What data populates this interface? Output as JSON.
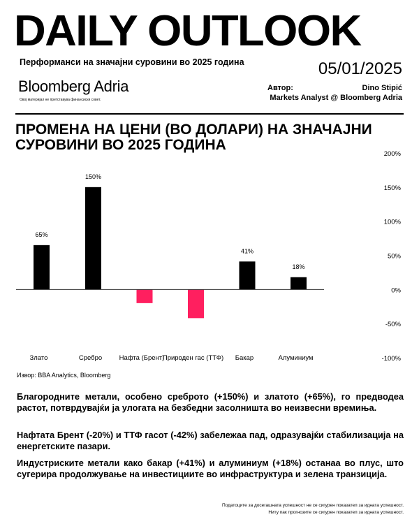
{
  "header": {
    "title": "DAILY OUTLOOK",
    "subtitle": "Перформанси на значајни суровини во 2025 година",
    "date": "05/01/2025",
    "logo": "Bloomberg Adria",
    "disclaimer": "Овој материјал не претставува финансиски совет.",
    "author_label": "Автор:",
    "author_name": "Dino Stipić",
    "author_role": "Markets Analyst @ Bloomberg Adria"
  },
  "chart_data": {
    "type": "bar",
    "title": "ПРОМЕНА НА ЦЕНИ (ВО ДОЛАРИ) НА ЗНАЧАЈНИ СУРОВИНИ ВО 2025 ГОДИНА",
    "categories": [
      "Злато",
      "Сребро",
      "Нафта (Брент)",
      "Природен гас (ТТФ)",
      "Бакар",
      "Алуминиум"
    ],
    "values": [
      65,
      150,
      -20,
      -42,
      41,
      18
    ],
    "data_labels": [
      "65%",
      "150%",
      "",
      "",
      "41%",
      "18%"
    ],
    "ylim": [
      -100,
      200
    ],
    "yticks": [
      "200%",
      "150%",
      "100%",
      "50%",
      "0%",
      "-50%",
      "-100%"
    ],
    "ytick_values": [
      200,
      150,
      100,
      50,
      0,
      -50,
      -100
    ],
    "yaxis_position": "right",
    "grid": false,
    "colors": {
      "positive": "#000000",
      "negative": "#ff1f5f"
    }
  },
  "source": "Извор: BBA Analytics, Bloomberg",
  "paragraphs": [
    "Благородните метали, особено среброто (+150%) и златото (+65%), го предводеа растот, потврдувајќи ја улогата на безбедни засолништа во неизвесни времиња.",
    "Нафтата Брент (-20%) и ТТФ гасот (-42%) забележаа пад, одразувајќи стабилизација на енергетските пазари.",
    "Индустриските метали како бакар (+41%) и алуминиум (+18%) останаа во плус, што сугерира продолжување на инвестициите во инфраструктура и зелена транзиција."
  ],
  "footer": [
    "Податоците за досегашната успешност не се сигурен показател за идната успешност.",
    "Ниту пак прогнозите се сигурен показател за идната успешност."
  ]
}
